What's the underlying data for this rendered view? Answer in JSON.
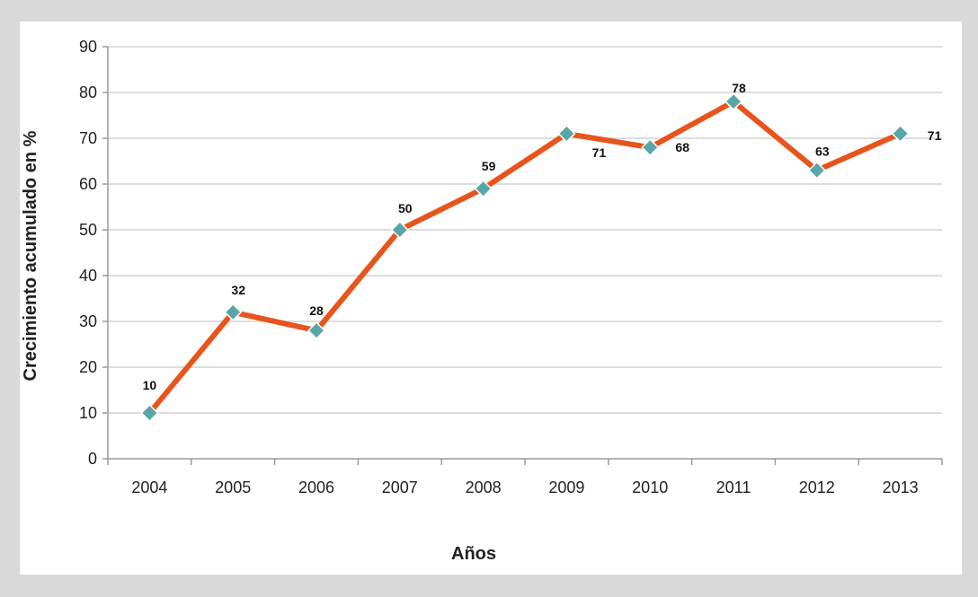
{
  "chart_data": {
    "type": "line",
    "categories": [
      "2004",
      "2005",
      "2006",
      "2007",
      "2008",
      "2009",
      "2010",
      "2011",
      "2012",
      "2013"
    ],
    "series": [
      {
        "values": [
          10,
          32,
          28,
          50,
          59,
          71,
          68,
          78,
          63,
          71
        ]
      }
    ],
    "data_labels": [
      "10",
      "32",
      "28",
      "50",
      "59",
      "71",
      "68",
      "78",
      "63",
      "71"
    ],
    "xlabel": "Años",
    "ylabel": "Crecimiento acumulado en %",
    "ylim": [
      0,
      90
    ],
    "yticks": [
      "0",
      "10",
      "20",
      "30",
      "40",
      "50",
      "60",
      "70",
      "80",
      "90"
    ],
    "grid": true,
    "line_color": "#e8541c",
    "marker_color": "#5aa6a6",
    "plot_background": "#ffffff",
    "background": "#d9d9d9"
  }
}
